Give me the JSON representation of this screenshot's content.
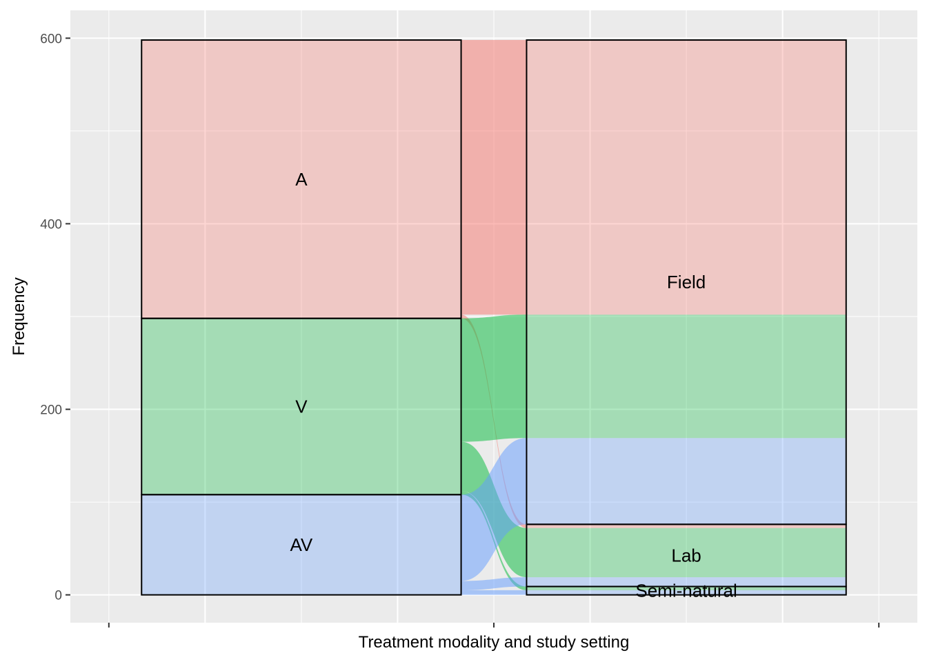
{
  "chart_data": {
    "type": "alluvial",
    "title": "",
    "xlabel": "Treatment modality and study setting",
    "ylabel": "Frequency",
    "ylim": [
      -30,
      630
    ],
    "yticks": [
      0,
      200,
      400,
      600
    ],
    "grid": true,
    "axes": [
      "Treatment modality",
      "Study setting"
    ],
    "left_strata": [
      {
        "label": "A",
        "value": 300,
        "color": "#F8766D"
      },
      {
        "label": "V",
        "value": 190,
        "color": "#00BA38"
      },
      {
        "label": "AV",
        "value": 108,
        "color": "#619CFF"
      }
    ],
    "right_strata": [
      {
        "label": "Field",
        "value": 522
      },
      {
        "label": "Lab",
        "value": 67
      },
      {
        "label": "Semi-natural",
        "value": 9
      }
    ],
    "flows": [
      {
        "from": "A",
        "to": "Field",
        "value": 296,
        "color": "#F8766D"
      },
      {
        "from": "A",
        "to": "Lab",
        "value": 4,
        "color": "#F8766D"
      },
      {
        "from": "V",
        "to": "Field",
        "value": 133,
        "color": "#00BA38"
      },
      {
        "from": "V",
        "to": "Lab",
        "value": 53,
        "color": "#00BA38"
      },
      {
        "from": "V",
        "to": "Semi-natural",
        "value": 4,
        "color": "#00BA38"
      },
      {
        "from": "AV",
        "to": "Field",
        "value": 93,
        "color": "#619CFF"
      },
      {
        "from": "AV",
        "to": "Lab",
        "value": 10,
        "color": "#619CFF"
      },
      {
        "from": "AV",
        "to": "Semi-natural",
        "value": 5,
        "color": "#619CFF"
      }
    ]
  }
}
